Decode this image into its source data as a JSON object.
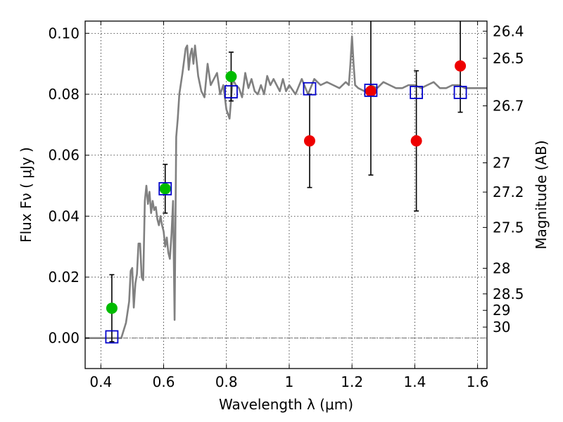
{
  "chart_data": {
    "type": "scatter",
    "xlabel": "Wavelength  λ (μm)",
    "ylabel": "Flux  Fν  ( μJy )",
    "ylabel_right": "Magnitude (AB)",
    "xlim": [
      0.35,
      1.63
    ],
    "ylim": [
      -0.01,
      0.104
    ],
    "grid": true,
    "x_ticks": [
      {
        "value": 0.4,
        "label": "0.4"
      },
      {
        "value": 0.6,
        "label": "0.6"
      },
      {
        "value": 0.8,
        "label": "0.8"
      },
      {
        "value": 1.0,
        "label": "1"
      },
      {
        "value": 1.2,
        "label": "1.2"
      },
      {
        "value": 1.4,
        "label": "1.4"
      },
      {
        "value": 1.6,
        "label": "1.6"
      }
    ],
    "y_ticks": [
      {
        "value": 0.0,
        "label": "0.00"
      },
      {
        "value": 0.02,
        "label": "0.02"
      },
      {
        "value": 0.04,
        "label": "0.04"
      },
      {
        "value": 0.06,
        "label": "0.06"
      },
      {
        "value": 0.08,
        "label": "0.08"
      },
      {
        "value": 0.1,
        "label": "0.10"
      }
    ],
    "right_ticks": [
      {
        "flux": 0.1007,
        "label": "26.4"
      },
      {
        "flux": 0.0918,
        "label": "26.5"
      },
      {
        "flux": 0.0762,
        "label": "26.7"
      },
      {
        "flux": 0.0575,
        "label": "27"
      },
      {
        "flux": 0.0479,
        "label": "27.2"
      },
      {
        "flux": 0.0363,
        "label": "27.5"
      },
      {
        "flux": 0.0229,
        "label": "28"
      },
      {
        "flux": 0.0145,
        "label": "28.5"
      },
      {
        "flux": 0.0091,
        "label": "29"
      },
      {
        "flux": 0.0036,
        "label": "30"
      }
    ],
    "zero_line": 0.0,
    "model_spectrum": {
      "color": "#808080",
      "x": [
        0.35,
        0.46,
        0.465,
        0.48,
        0.49,
        0.495,
        0.5,
        0.505,
        0.51,
        0.515,
        0.52,
        0.525,
        0.53,
        0.535,
        0.54,
        0.545,
        0.55,
        0.555,
        0.56,
        0.565,
        0.57,
        0.575,
        0.58,
        0.585,
        0.59,
        0.595,
        0.6,
        0.605,
        0.61,
        0.615,
        0.62,
        0.625,
        0.63,
        0.635,
        0.64,
        0.645,
        0.65,
        0.66,
        0.67,
        0.675,
        0.68,
        0.685,
        0.69,
        0.695,
        0.7,
        0.71,
        0.72,
        0.73,
        0.74,
        0.75,
        0.76,
        0.77,
        0.78,
        0.79,
        0.8,
        0.81,
        0.82,
        0.83,
        0.84,
        0.85,
        0.86,
        0.87,
        0.88,
        0.89,
        0.9,
        0.91,
        0.92,
        0.93,
        0.94,
        0.95,
        0.96,
        0.97,
        0.98,
        0.99,
        1.0,
        1.02,
        1.04,
        1.06,
        1.08,
        1.1,
        1.12,
        1.14,
        1.16,
        1.18,
        1.19,
        1.195,
        1.2,
        1.205,
        1.21,
        1.22,
        1.24,
        1.26,
        1.28,
        1.3,
        1.32,
        1.34,
        1.36,
        1.38,
        1.4,
        1.42,
        1.44,
        1.46,
        1.48,
        1.5,
        1.52,
        1.54,
        1.56,
        1.58,
        1.6,
        1.63
      ],
      "y": [
        0.0,
        0.0,
        0.0,
        0.005,
        0.012,
        0.022,
        0.023,
        0.01,
        0.018,
        0.021,
        0.031,
        0.031,
        0.02,
        0.019,
        0.045,
        0.05,
        0.044,
        0.048,
        0.041,
        0.045,
        0.042,
        0.043,
        0.039,
        0.037,
        0.04,
        0.037,
        0.035,
        0.03,
        0.033,
        0.028,
        0.026,
        0.034,
        0.045,
        0.006,
        0.066,
        0.072,
        0.08,
        0.087,
        0.095,
        0.096,
        0.088,
        0.093,
        0.095,
        0.09,
        0.096,
        0.086,
        0.081,
        0.079,
        0.09,
        0.083,
        0.085,
        0.087,
        0.08,
        0.083,
        0.075,
        0.072,
        0.085,
        0.083,
        0.082,
        0.079,
        0.087,
        0.082,
        0.085,
        0.081,
        0.08,
        0.083,
        0.08,
        0.086,
        0.083,
        0.085,
        0.083,
        0.081,
        0.085,
        0.081,
        0.083,
        0.08,
        0.085,
        0.08,
        0.085,
        0.083,
        0.084,
        0.083,
        0.082,
        0.084,
        0.083,
        0.09,
        0.099,
        0.09,
        0.083,
        0.082,
        0.081,
        0.083,
        0.082,
        0.084,
        0.083,
        0.082,
        0.082,
        0.083,
        0.083,
        0.082,
        0.083,
        0.084,
        0.082,
        0.082,
        0.083,
        0.083,
        0.082,
        0.082,
        0.082,
        0.082
      ]
    },
    "series": [
      {
        "marker": "circle-green",
        "color": "#00bb00",
        "points": [
          {
            "x": 0.435,
            "y": 0.0098,
            "err": 0.011
          },
          {
            "x": 0.605,
            "y": 0.049,
            "err": 0.008
          },
          {
            "x": 0.815,
            "y": 0.0858,
            "err": 0.008
          }
        ]
      },
      {
        "marker": "circle-red",
        "color": "#ee0000",
        "points": [
          {
            "x": 1.065,
            "y": 0.0647,
            "err": 0.0153
          },
          {
            "x": 1.26,
            "y": 0.081,
            "err": 0.0275
          },
          {
            "x": 1.405,
            "y": 0.0647,
            "err": 0.023
          },
          {
            "x": 1.545,
            "y": 0.0893,
            "err": 0.0152
          }
        ]
      },
      {
        "marker": "square-blue",
        "color": "#0000cc",
        "points": [
          {
            "x": 0.435,
            "y": 0.0004
          },
          {
            "x": 0.605,
            "y": 0.049
          },
          {
            "x": 0.815,
            "y": 0.0808
          },
          {
            "x": 1.065,
            "y": 0.0818
          },
          {
            "x": 1.26,
            "y": 0.0813
          },
          {
            "x": 1.405,
            "y": 0.0806
          },
          {
            "x": 1.545,
            "y": 0.0806
          }
        ]
      }
    ]
  }
}
